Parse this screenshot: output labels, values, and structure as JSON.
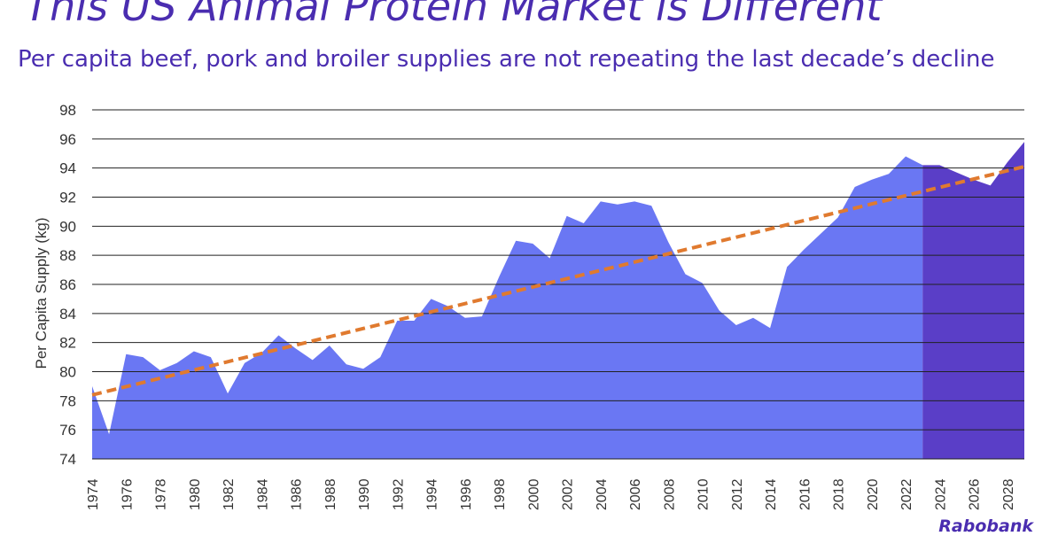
{
  "colors": {
    "title": "#4a2db0",
    "subtitle": "#4a2db0",
    "historical_area": "#6a77f3",
    "forecast_area": "#5a3ec7",
    "trendline": "#e07a2f",
    "grid": "#222222",
    "text": "#333333"
  },
  "chart_data": {
    "type": "area",
    "title": "This US Animal Protein Market is Different",
    "subtitle": "Per capita beef, pork and broiler supplies are not repeating the last decade’s decline",
    "ylabel": "Per Capita Supply (kg)",
    "xlabel": "",
    "ylim": [
      74,
      98
    ],
    "xlim": [
      1974,
      2029
    ],
    "y_ticks": [
      74,
      76,
      78,
      80,
      82,
      84,
      86,
      88,
      90,
      92,
      94,
      96,
      98
    ],
    "x_ticks": [
      1974,
      1976,
      1978,
      1980,
      1982,
      1984,
      1986,
      1988,
      1990,
      1992,
      1994,
      1996,
      1998,
      2000,
      2002,
      2004,
      2006,
      2008,
      2010,
      2012,
      2014,
      2016,
      2018,
      2020,
      2022,
      2024,
      2026,
      2028
    ],
    "grid": true,
    "forecast_start": 2023,
    "series": [
      {
        "x": [
          1974,
          1975,
          1976,
          1977,
          1978,
          1979,
          1980,
          1981,
          1982,
          1983,
          1984,
          1985,
          1986,
          1987,
          1988,
          1989,
          1990,
          1991,
          1992,
          1993,
          1994,
          1995,
          1996,
          1997,
          1998,
          1999,
          2000,
          2001,
          2002,
          2003,
          2004,
          2005,
          2006,
          2007,
          2008,
          2009,
          2010,
          2011,
          2012,
          2013,
          2014,
          2015,
          2016,
          2017,
          2018,
          2019,
          2020,
          2021,
          2022,
          2023,
          2024,
          2025,
          2026,
          2027,
          2028,
          2029
        ],
        "values": [
          79.0,
          75.7,
          81.2,
          81.0,
          80.1,
          80.6,
          81.4,
          81.0,
          78.5,
          80.6,
          81.3,
          82.5,
          81.6,
          80.8,
          81.8,
          80.5,
          80.2,
          81.0,
          83.5,
          83.5,
          85.0,
          84.5,
          83.7,
          83.8,
          86.5,
          89.0,
          88.8,
          87.8,
          90.7,
          90.2,
          91.7,
          91.5,
          91.7,
          91.4,
          88.9,
          86.7,
          86.1,
          84.2,
          83.2,
          83.7,
          83.0,
          87.2,
          88.4,
          89.5,
          90.6,
          92.7,
          93.2,
          93.6,
          94.8,
          94.2,
          94.2,
          93.7,
          93.2,
          92.8,
          94.4,
          95.8
        ]
      },
      {
        "type": "trendline",
        "x": [
          1974,
          2029
        ],
        "values": [
          78.4,
          94.1
        ]
      }
    ]
  },
  "branding": {
    "logo_text": "Rabobank"
  }
}
